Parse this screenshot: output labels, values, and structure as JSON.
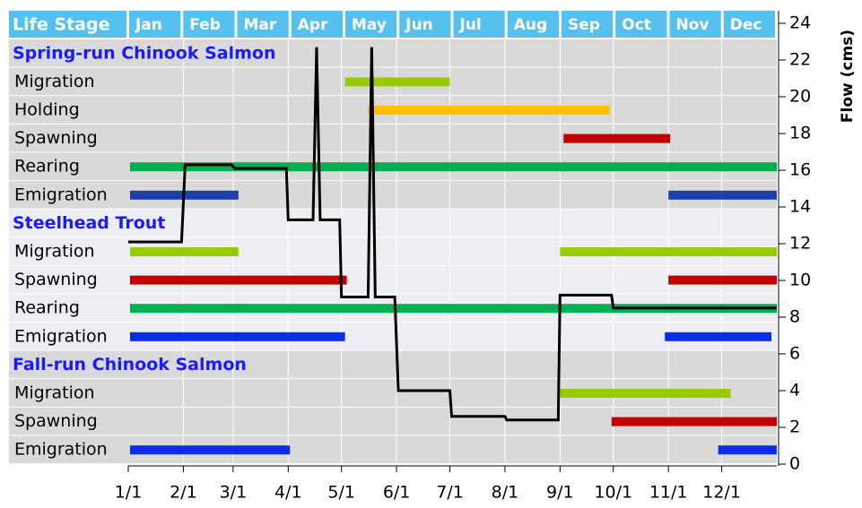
{
  "chart_data": {
    "type": "periodicity",
    "header_label": "Life Stage",
    "months": [
      "Jan",
      "Feb",
      "Mar",
      "Apr",
      "May",
      "Jun",
      "Jul",
      "Aug",
      "Sep",
      "Oct",
      "Nov",
      "Dec"
    ],
    "sections": [
      {
        "name": "Spring-run Chinook Salmon",
        "stages": [
          {
            "name": "Migration",
            "color": "#99cc00",
            "periods": [
              {
                "start": 122,
                "end": 181
              }
            ]
          },
          {
            "name": "Holding",
            "color": "#ffc000",
            "periods": [
              {
                "start": 135,
                "end": 271
              }
            ]
          },
          {
            "name": "Spawning",
            "color": "#c00000",
            "periods": [
              {
                "start": 245,
                "end": 305
              }
            ]
          },
          {
            "name": "Rearing",
            "color": "#00b050",
            "periods": [
              {
                "start": 1,
                "end": 365
              }
            ]
          },
          {
            "name": "Emigration",
            "color": "#1f3fae",
            "periods": [
              {
                "start": 1,
                "end": 62
              },
              {
                "start": 304,
                "end": 365
              }
            ]
          }
        ]
      },
      {
        "name": "Steelhead Trout",
        "stages": [
          {
            "name": "Migration",
            "color": "#99cc00",
            "periods": [
              {
                "start": 1,
                "end": 62
              },
              {
                "start": 243,
                "end": 365
              }
            ]
          },
          {
            "name": "Spawning",
            "color": "#c00000",
            "periods": [
              {
                "start": 1,
                "end": 123
              },
              {
                "start": 304,
                "end": 365
              }
            ]
          },
          {
            "name": "Rearing",
            "color": "#00b050",
            "periods": [
              {
                "start": 1,
                "end": 365
              }
            ]
          },
          {
            "name": "Emigration",
            "color": "#0a2ee6",
            "periods": [
              {
                "start": 1,
                "end": 122
              },
              {
                "start": 302,
                "end": 362
              }
            ]
          }
        ]
      },
      {
        "name": "Fall-run Chinook Salmon",
        "stages": [
          {
            "name": "Migration",
            "color": "#99cc00",
            "periods": [
              {
                "start": 243,
                "end": 339
              }
            ]
          },
          {
            "name": "Spawning",
            "color": "#c00000",
            "periods": [
              {
                "start": 272,
                "end": 365
              }
            ]
          },
          {
            "name": "Emigration",
            "color": "#0a2ee6",
            "periods": [
              {
                "start": 1,
                "end": 91
              },
              {
                "start": 332,
                "end": 365
              }
            ]
          }
        ]
      }
    ],
    "flow": {
      "color": "#000000",
      "x": [
        0,
        30,
        32,
        58,
        60,
        89,
        90,
        104,
        106,
        108,
        119,
        120,
        135,
        137,
        139,
        150,
        152,
        181,
        182,
        212,
        213,
        242,
        243,
        272,
        273,
        365
      ],
      "values": [
        12.1,
        12.1,
        16.3,
        16.3,
        16.1,
        16.1,
        13.3,
        13.3,
        22.7,
        13.3,
        13.3,
        9.1,
        9.1,
        22.7,
        9.1,
        9.1,
        4.0,
        4.0,
        2.6,
        2.6,
        2.4,
        2.4,
        9.2,
        9.2,
        8.5,
        8.5
      ]
    },
    "y_label": "Flow (cms)",
    "xlim": [
      0,
      365
    ],
    "xticks": [
      {
        "value": 0,
        "label": "1/1"
      },
      {
        "value": 31,
        "label": "2/1"
      },
      {
        "value": 59,
        "label": "3/1"
      },
      {
        "value": 90,
        "label": "4/1"
      },
      {
        "value": 120,
        "label": "5/1"
      },
      {
        "value": 151,
        "label": "6/1"
      },
      {
        "value": 181,
        "label": "7/1"
      },
      {
        "value": 212,
        "label": "8/1"
      },
      {
        "value": 243,
        "label": "9/1"
      },
      {
        "value": 273,
        "label": "10/1"
      },
      {
        "value": 304,
        "label": "11/1"
      },
      {
        "value": 334,
        "label": "12/1"
      }
    ],
    "ylim": [
      0,
      24
    ],
    "yticks": [
      0,
      2,
      4,
      6,
      8,
      10,
      12,
      14,
      16,
      18,
      20,
      22,
      24
    ],
    "header_color": "#56c1ee",
    "grid": true
  }
}
